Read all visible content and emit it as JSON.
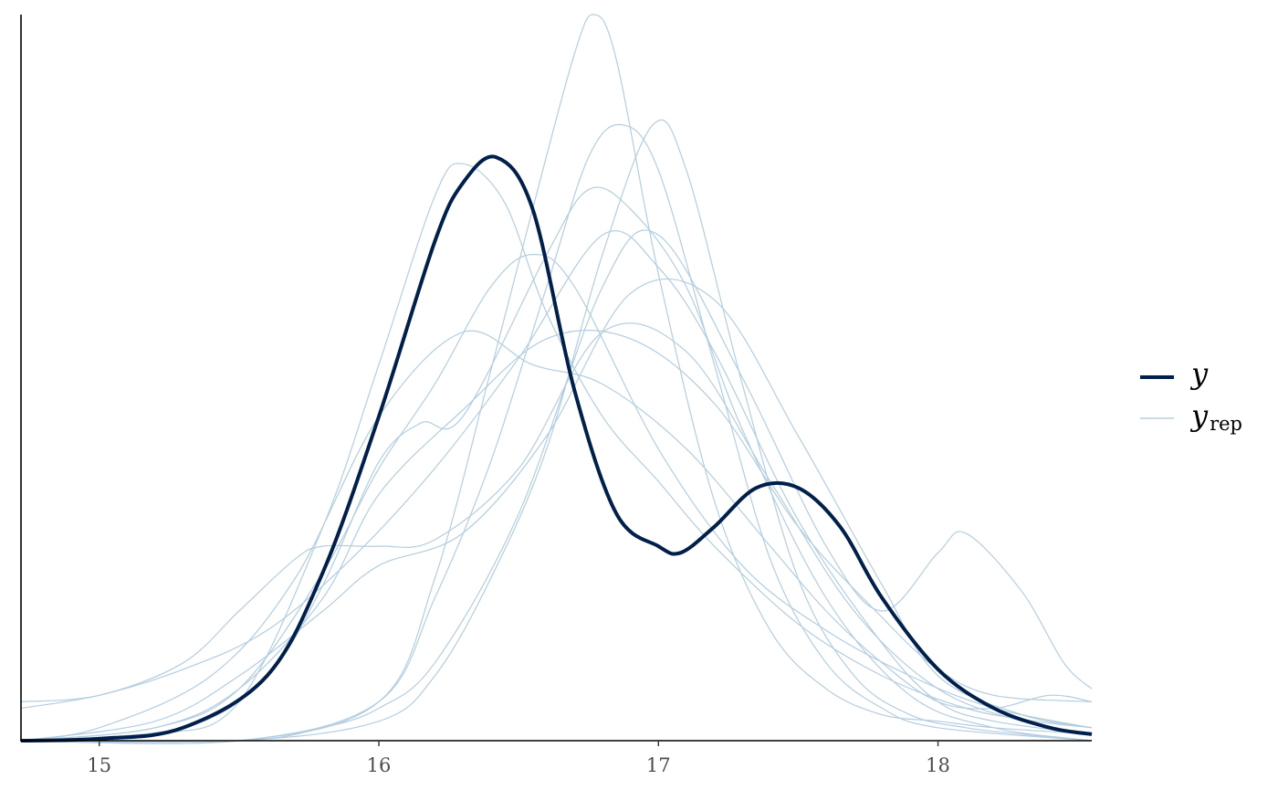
{
  "chart_data": {
    "type": "line",
    "xlim": [
      14.72,
      18.55
    ],
    "ylim": [
      0,
      1.0
    ],
    "x_ticks": [
      15,
      16,
      17,
      18
    ],
    "x_tick_labels": [
      "15",
      "16",
      "17",
      "18"
    ],
    "y_ticks_shown": false,
    "grid": false,
    "legend_position": "right",
    "colors": {
      "y": "#011f4b",
      "yrep": "#b3cde0"
    },
    "series": [
      {
        "name": "y",
        "role": "observed",
        "color": "#011f4b",
        "x": [
          14.72,
          15.0,
          15.3,
          15.6,
          15.8,
          16.0,
          16.2,
          16.3,
          16.42,
          16.55,
          16.7,
          16.85,
          17.0,
          17.08,
          17.2,
          17.35,
          17.5,
          17.65,
          17.8,
          18.0,
          18.2,
          18.4,
          18.55
        ],
        "y": [
          0.0,
          0.003,
          0.02,
          0.1,
          0.26,
          0.5,
          0.77,
          0.86,
          0.9,
          0.82,
          0.54,
          0.35,
          0.3,
          0.29,
          0.33,
          0.39,
          0.39,
          0.33,
          0.22,
          0.11,
          0.05,
          0.02,
          0.01
        ]
      }
    ],
    "yrep_label_base": "y",
    "yrep_label_sub": "rep",
    "yrep_draws": [
      {
        "x": [
          14.72,
          15.2,
          15.5,
          15.8,
          16.0,
          16.2,
          16.3,
          16.45,
          16.6,
          16.8,
          17.0,
          17.2,
          17.5,
          17.8,
          18.1,
          18.35,
          18.55
        ],
        "y": [
          0.0,
          0.01,
          0.06,
          0.33,
          0.58,
          0.84,
          0.89,
          0.83,
          0.66,
          0.5,
          0.4,
          0.3,
          0.18,
          0.1,
          0.05,
          0.03,
          0.02
        ]
      },
      {
        "x": [
          14.72,
          15.5,
          16.0,
          16.2,
          16.4,
          16.55,
          16.7,
          16.77,
          16.85,
          17.0,
          17.2,
          17.4,
          17.6,
          17.8,
          18.0,
          18.2,
          18.55
        ],
        "y": [
          0.0,
          0.0,
          0.06,
          0.25,
          0.57,
          0.82,
          1.06,
          1.12,
          1.05,
          0.72,
          0.37,
          0.17,
          0.08,
          0.04,
          0.03,
          0.02,
          0.01
        ]
      },
      {
        "x": [
          14.72,
          15.5,
          16.0,
          16.2,
          16.4,
          16.6,
          16.75,
          16.87,
          17.0,
          17.2,
          17.4,
          17.6,
          17.8,
          18.0,
          18.55
        ],
        "y": [
          0.0,
          0.0,
          0.06,
          0.22,
          0.43,
          0.7,
          0.9,
          0.95,
          0.88,
          0.58,
          0.28,
          0.12,
          0.05,
          0.02,
          0.0
        ]
      },
      {
        "x": [
          14.72,
          15.5,
          16.0,
          16.2,
          16.4,
          16.6,
          16.8,
          16.98,
          17.1,
          17.3,
          17.5,
          17.7,
          17.9,
          18.1,
          18.3,
          18.55
        ],
        "y": [
          0.0,
          0.0,
          0.03,
          0.1,
          0.25,
          0.45,
          0.75,
          0.95,
          0.88,
          0.55,
          0.25,
          0.1,
          0.04,
          0.02,
          0.01,
          0.0
        ]
      },
      {
        "x": [
          14.72,
          15.0,
          15.3,
          15.6,
          15.9,
          16.2,
          16.5,
          16.8,
          17.0,
          17.2,
          17.5,
          17.8,
          18.0,
          18.2,
          18.55
        ],
        "y": [
          0.05,
          0.07,
          0.11,
          0.17,
          0.28,
          0.42,
          0.59,
          0.78,
          0.73,
          0.6,
          0.34,
          0.15,
          0.06,
          0.03,
          0.01
        ]
      },
      {
        "x": [
          14.72,
          15.2,
          15.5,
          15.8,
          16.0,
          16.2,
          16.4,
          16.55,
          16.7,
          17.0,
          17.3,
          17.6,
          17.9,
          18.2,
          18.55
        ],
        "y": [
          0.0,
          0.02,
          0.08,
          0.26,
          0.42,
          0.55,
          0.7,
          0.75,
          0.7,
          0.45,
          0.27,
          0.17,
          0.1,
          0.05,
          0.02
        ]
      },
      {
        "x": [
          14.72,
          15.3,
          15.6,
          15.8,
          16.0,
          16.15,
          16.3,
          16.6,
          16.75,
          16.9,
          17.1,
          17.3,
          17.6,
          17.9,
          18.2,
          18.55
        ],
        "y": [
          0.0,
          0.02,
          0.1,
          0.24,
          0.43,
          0.49,
          0.5,
          0.75,
          0.85,
          0.82,
          0.7,
          0.48,
          0.22,
          0.07,
          0.02,
          0.0
        ]
      },
      {
        "x": [
          14.72,
          15.2,
          15.5,
          15.8,
          16.0,
          16.3,
          16.6,
          16.9,
          17.2,
          17.5,
          17.8,
          18.0,
          18.2,
          18.55
        ],
        "y": [
          0.0,
          0.02,
          0.08,
          0.22,
          0.38,
          0.51,
          0.62,
          0.62,
          0.52,
          0.33,
          0.19,
          0.11,
          0.07,
          0.06
        ]
      },
      {
        "x": [
          14.72,
          15.2,
          15.5,
          15.8,
          16.0,
          16.3,
          16.6,
          16.9,
          17.2,
          17.5,
          17.8,
          18.0,
          18.3,
          18.55
        ],
        "y": [
          0.0,
          0.03,
          0.1,
          0.2,
          0.27,
          0.32,
          0.47,
          0.69,
          0.68,
          0.47,
          0.24,
          0.1,
          0.04,
          0.02
        ]
      },
      {
        "x": [
          14.72,
          15.0,
          15.4,
          15.7,
          16.0,
          16.3,
          16.55,
          16.8,
          17.1,
          17.4,
          17.6,
          17.8,
          18.0,
          18.2,
          18.4,
          18.55
        ],
        "y": [
          0.0,
          0.02,
          0.1,
          0.25,
          0.5,
          0.63,
          0.58,
          0.55,
          0.45,
          0.3,
          0.2,
          0.12,
          0.06,
          0.05,
          0.07,
          0.06
        ]
      },
      {
        "x": [
          14.72,
          15.5,
          15.8,
          16.0,
          16.2,
          16.5,
          16.8,
          17.0,
          17.3,
          17.6,
          17.8,
          18.0,
          18.1,
          18.3,
          18.45,
          18.55
        ],
        "y": [
          0.0,
          0.0,
          0.02,
          0.05,
          0.12,
          0.35,
          0.7,
          0.78,
          0.56,
          0.3,
          0.2,
          0.29,
          0.32,
          0.23,
          0.12,
          0.08
        ]
      },
      {
        "x": [
          14.72,
          15.0,
          15.3,
          15.5,
          15.7,
          15.8,
          16.0,
          16.2,
          16.5,
          16.8,
          17.1,
          17.4,
          17.7,
          18.0,
          18.3,
          18.55
        ],
        "y": [
          0.06,
          0.07,
          0.12,
          0.2,
          0.28,
          0.3,
          0.3,
          0.31,
          0.42,
          0.63,
          0.6,
          0.4,
          0.2,
          0.08,
          0.03,
          0.01
        ]
      }
    ]
  }
}
